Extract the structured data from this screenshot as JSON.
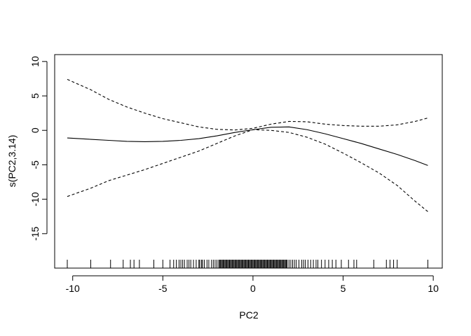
{
  "chart_data": {
    "type": "line",
    "xlabel": "PC2",
    "ylabel": "s(PC2,3.14)",
    "xlim": [
      -11.0,
      10.5
    ],
    "ylim": [
      -20,
      11
    ],
    "x_ticks": [
      -10,
      -5,
      0,
      5,
      10
    ],
    "x_tick_labels": [
      "-10",
      "-5",
      "0",
      "5",
      "10"
    ],
    "y_ticks": [
      -15,
      -10,
      -5,
      0,
      5,
      10
    ],
    "y_tick_labels": [
      "-15",
      "-10",
      "-5",
      "0",
      "5",
      "10"
    ],
    "grid": false,
    "series": [
      {
        "style": "solid",
        "x": [
          -10.3,
          -9,
          -8,
          -7,
          -6,
          -5,
          -4,
          -3,
          -2,
          -1,
          0,
          1,
          2,
          3,
          4,
          5,
          6,
          7,
          8,
          9,
          9.7
        ],
        "y": [
          -1.1,
          -1.3,
          -1.45,
          -1.6,
          -1.65,
          -1.6,
          -1.45,
          -1.2,
          -0.8,
          -0.3,
          0.1,
          0.45,
          0.5,
          0.1,
          -0.5,
          -1.2,
          -1.9,
          -2.7,
          -3.5,
          -4.4,
          -5.1
        ]
      },
      {
        "style": "dashed",
        "x": [
          -10.3,
          -9,
          -8,
          -7,
          -6,
          -5,
          -4,
          -3,
          -2,
          -1,
          0,
          1,
          2,
          3,
          4,
          5,
          6,
          7,
          8,
          9,
          9.7
        ],
        "y": [
          7.4,
          5.9,
          4.5,
          3.4,
          2.5,
          1.7,
          1.1,
          0.5,
          0.15,
          0.05,
          0.3,
          0.9,
          1.3,
          1.25,
          0.9,
          0.7,
          0.6,
          0.6,
          0.8,
          1.3,
          1.8
        ]
      },
      {
        "style": "dashed",
        "x": [
          -10.3,
          -9,
          -8,
          -7,
          -6,
          -5,
          -4,
          -3,
          -2,
          -1,
          0,
          1,
          2,
          3,
          4,
          5,
          6,
          7,
          8,
          9,
          9.7
        ],
        "y": [
          -9.6,
          -8.4,
          -7.3,
          -6.5,
          -5.7,
          -4.8,
          -3.9,
          -3.0,
          -1.9,
          -0.8,
          0.1,
          0.0,
          -0.3,
          -1.0,
          -2.0,
          -3.3,
          -4.7,
          -6.2,
          -8.0,
          -10.3,
          -11.8
        ]
      }
    ],
    "rug": [
      -10.3,
      -9.0,
      -7.9,
      -7.2,
      -6.8,
      -6.6,
      -6.3,
      -5.5,
      -5.0,
      -4.6,
      -4.4,
      -4.25,
      -4.1,
      -4.0,
      -3.9,
      -3.8,
      -3.65,
      -3.55,
      -3.45,
      -3.3,
      -3.15,
      -3.0,
      -2.95,
      -2.85,
      -2.8,
      -2.7,
      -2.55,
      -2.45,
      -2.3,
      -2.2,
      -2.1,
      -2.0,
      -1.9,
      -1.85,
      -1.8,
      -1.75,
      -1.7,
      -1.65,
      -1.6,
      -1.55,
      -1.5,
      -1.45,
      -1.4,
      -1.35,
      -1.3,
      -1.25,
      -1.2,
      -1.15,
      -1.1,
      -1.05,
      -1.0,
      -0.95,
      -0.9,
      -0.85,
      -0.8,
      -0.75,
      -0.7,
      -0.65,
      -0.6,
      -0.55,
      -0.5,
      -0.45,
      -0.4,
      -0.35,
      -0.3,
      -0.25,
      -0.2,
      -0.15,
      -0.1,
      -0.05,
      0.0,
      0.05,
      0.1,
      0.15,
      0.2,
      0.25,
      0.3,
      0.35,
      0.4,
      0.45,
      0.5,
      0.55,
      0.6,
      0.65,
      0.7,
      0.75,
      0.8,
      0.85,
      0.9,
      0.95,
      1.0,
      1.05,
      1.1,
      1.15,
      1.2,
      1.25,
      1.3,
      1.35,
      1.4,
      1.45,
      1.5,
      1.55,
      1.6,
      1.65,
      1.7,
      1.75,
      1.8,
      1.85,
      1.9,
      2.0,
      2.1,
      2.2,
      2.3,
      2.4,
      2.55,
      2.7,
      2.8,
      2.9,
      3.05,
      3.2,
      3.35,
      3.5,
      3.6,
      3.8,
      4.0,
      4.2,
      4.4,
      4.6,
      4.9,
      5.3,
      5.6,
      5.75,
      6.7,
      7.4,
      7.6,
      7.8,
      8.0,
      9.7
    ]
  }
}
